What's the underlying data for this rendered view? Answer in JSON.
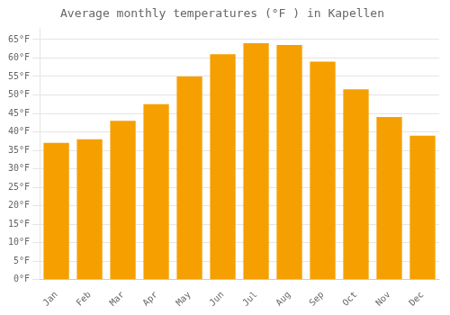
{
  "chart_data": {
    "type": "bar",
    "title": "Average monthly temperatures (°F ) in Kapellen",
    "categories": [
      "Jan",
      "Feb",
      "Mar",
      "Apr",
      "May",
      "Jun",
      "Jul",
      "Aug",
      "Sep",
      "Oct",
      "Nov",
      "Dec"
    ],
    "values": [
      37,
      38,
      43,
      47.5,
      55,
      61,
      64,
      63.5,
      59,
      51.5,
      44,
      39
    ],
    "color": "#F5A000",
    "ylim": [
      0,
      68
    ],
    "yticks": [
      {
        "value": 0,
        "label": "0°F"
      },
      {
        "value": 5,
        "label": "5°F"
      },
      {
        "value": 10,
        "label": "10°F"
      },
      {
        "value": 15,
        "label": "15°F"
      },
      {
        "value": 20,
        "label": "20°F"
      },
      {
        "value": 25,
        "label": "25°F"
      },
      {
        "value": 30,
        "label": "30°F"
      },
      {
        "value": 35,
        "label": "35°F"
      },
      {
        "value": 40,
        "label": "40°F"
      },
      {
        "value": 45,
        "label": "45°F"
      },
      {
        "value": 50,
        "label": "50°F"
      },
      {
        "value": 55,
        "label": "55°F"
      },
      {
        "value": 60,
        "label": "60°F"
      },
      {
        "value": 65,
        "label": "65°F"
      }
    ],
    "grid": true
  }
}
